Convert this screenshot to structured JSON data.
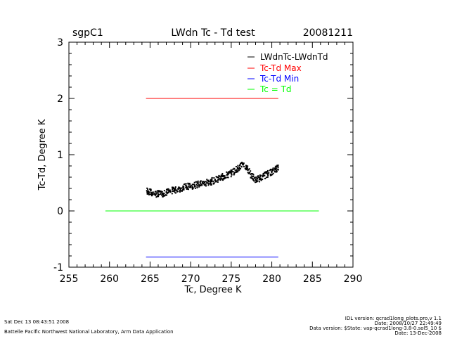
{
  "header": {
    "site": "sgpC1",
    "title": "LWdn Tc - Td test",
    "date": "20081211"
  },
  "footer": {
    "timestamp": "Sat Dec 13 08:43:51 2008",
    "institution": "Battelle Pacific Northwest National Laboratory, Arm Data Application",
    "idl_version": "IDL version: qcrad1long_plots.pro,v 1.1",
    "idl_date": "Date: 2008/10/27 22:49:49",
    "data_version": "Data version: $State: vap-qcrad1long-3.8-0.sol5_10 $",
    "data_date": "Date: 13-Dec-2008"
  },
  "chart_data": {
    "type": "scatter",
    "title": "LWdn Tc - Td test",
    "xlabel": "Tc, Degree K",
    "ylabel": "Tc-Td, Degree K",
    "xlim": [
      255,
      290
    ],
    "ylim": [
      -1,
      3
    ],
    "xticks": [
      "255",
      "260",
      "265",
      "270",
      "275",
      "280",
      "285",
      "290"
    ],
    "yticks": [
      "-1",
      "0",
      "1",
      "2",
      "3"
    ],
    "legend_position": "top-right",
    "grid": false,
    "series": [
      {
        "name": "LWdnTc-LWdnTd",
        "color": "#000000",
        "style": "points",
        "points": [
          [
            264.6,
            0.36
          ],
          [
            265.0,
            0.33
          ],
          [
            265.5,
            0.31
          ],
          [
            266.0,
            0.3
          ],
          [
            266.5,
            0.31
          ],
          [
            267.0,
            0.33
          ],
          [
            267.5,
            0.35
          ],
          [
            268.0,
            0.37
          ],
          [
            268.5,
            0.39
          ],
          [
            269.0,
            0.41
          ],
          [
            269.5,
            0.43
          ],
          [
            270.0,
            0.44
          ],
          [
            270.5,
            0.46
          ],
          [
            271.0,
            0.47
          ],
          [
            271.5,
            0.49
          ],
          [
            272.0,
            0.5
          ],
          [
            272.5,
            0.52
          ],
          [
            273.0,
            0.55
          ],
          [
            273.5,
            0.58
          ],
          [
            274.0,
            0.61
          ],
          [
            274.5,
            0.64
          ],
          [
            275.0,
            0.67
          ],
          [
            275.5,
            0.72
          ],
          [
            276.0,
            0.78
          ],
          [
            276.5,
            0.82
          ],
          [
            277.0,
            0.76
          ],
          [
            277.5,
            0.62
          ],
          [
            278.0,
            0.55
          ],
          [
            278.5,
            0.58
          ],
          [
            279.0,
            0.62
          ],
          [
            279.5,
            0.66
          ],
          [
            280.0,
            0.7
          ],
          [
            280.5,
            0.74
          ],
          [
            280.8,
            0.78
          ]
        ]
      },
      {
        "name": "Tc-Td Max",
        "color": "#ff0000",
        "style": "line",
        "x": [
          264.5,
          280.8
        ],
        "y": [
          2.0,
          2.0
        ]
      },
      {
        "name": "Tc-Td Min",
        "color": "#0000ff",
        "style": "line",
        "x": [
          264.5,
          280.8
        ],
        "y": [
          -0.82,
          -0.82
        ]
      },
      {
        "name": "Tc = Td",
        "color": "#00ff00",
        "style": "line",
        "x": [
          259.5,
          285.8
        ],
        "y": [
          0.0,
          0.0
        ]
      }
    ]
  }
}
